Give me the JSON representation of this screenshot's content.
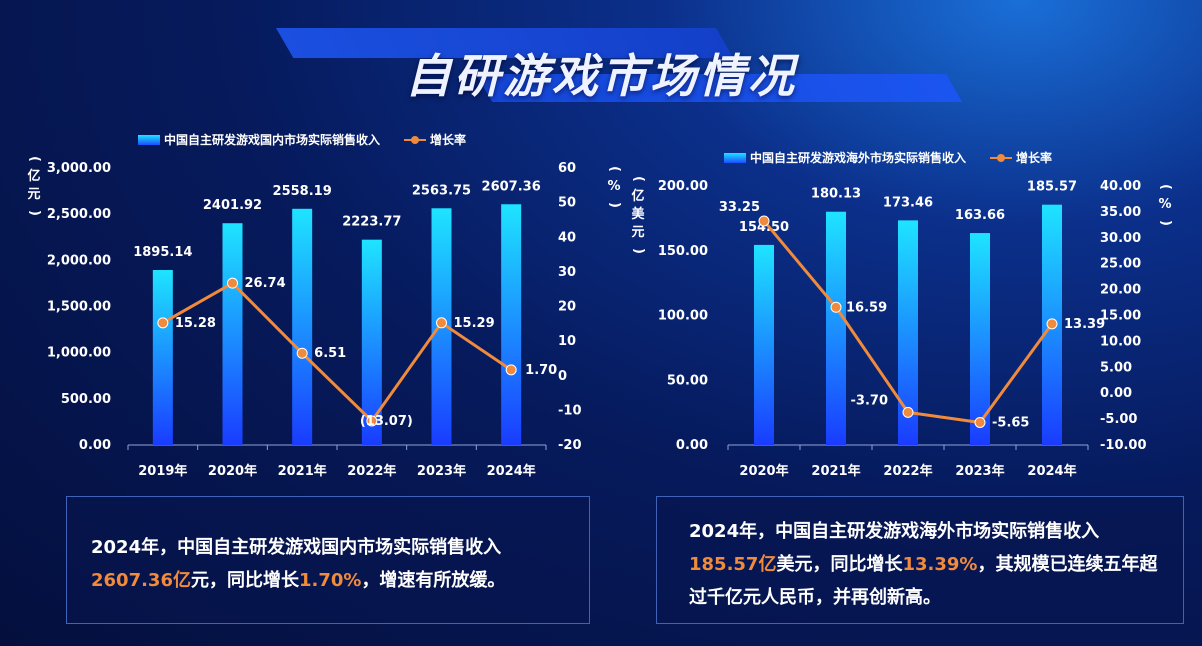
{
  "title": "自研游戏市场情况",
  "colors": {
    "accent": "#f08a3c",
    "bar_top": "#1ee4ff",
    "bar_bottom": "#1a3cff"
  },
  "chart_data": [
    {
      "type": "bar",
      "categories": [
        "2019年",
        "2020年",
        "2021年",
        "2022年",
        "2023年",
        "2024年"
      ],
      "series": [
        {
          "name": "中国自主研发游戏国内市场实际销售收入",
          "type": "bar",
          "axis": "left",
          "values": [
            1895.14,
            2401.92,
            2558.19,
            2223.77,
            2563.75,
            2607.36
          ],
          "labels": [
            "1895.14",
            "2401.92",
            "2558.19",
            "2223.77",
            "2563.75",
            "2607.36"
          ]
        },
        {
          "name": "增长率",
          "type": "line",
          "axis": "right",
          "values": [
            15.28,
            26.74,
            6.51,
            -13.07,
            15.29,
            1.7
          ],
          "labels": [
            "15.28",
            "26.74",
            "6.51",
            "(13.07)",
            "15.29",
            "1.70"
          ]
        }
      ],
      "ylabel_left": "亿元",
      "ylabel_right": "%",
      "ylim_left": [
        0,
        3000
      ],
      "yticks_left": [
        "0.00",
        "500.00",
        "1,000.00",
        "1,500.00",
        "2,000.00",
        "2,500.00",
        "3,000.00"
      ],
      "ylim_right": [
        -20,
        60
      ],
      "yticks_right": [
        "-20",
        "-10",
        "0",
        "10",
        "20",
        "30",
        "40",
        "50",
        "60"
      ],
      "legend": "top",
      "grid": false
    },
    {
      "type": "bar",
      "categories": [
        "2020年",
        "2021年",
        "2022年",
        "2023年",
        "2024年"
      ],
      "series": [
        {
          "name": "中国自主研发游戏海外市场实际销售收入",
          "type": "bar",
          "axis": "left",
          "values": [
            154.5,
            180.13,
            173.46,
            163.66,
            185.57
          ],
          "labels": [
            "154.50",
            "180.13",
            "173.46",
            "163.66",
            "185.57"
          ]
        },
        {
          "name": "增长率",
          "type": "line",
          "axis": "right",
          "values": [
            33.25,
            16.59,
            -3.7,
            -5.65,
            13.39
          ],
          "labels": [
            "33.25",
            "16.59",
            "-3.70",
            "-5.65",
            "13.39"
          ]
        }
      ],
      "ylabel_left": "亿美元",
      "ylabel_right": "%",
      "ylim_left": [
        0,
        200
      ],
      "yticks_left": [
        "0.00",
        "50.00",
        "100.00",
        "150.00",
        "200.00"
      ],
      "ylim_right": [
        -10,
        40
      ],
      "yticks_right": [
        "-10.00",
        "-5.00",
        "0.00",
        "5.00",
        "10.00",
        "15.00",
        "20.00",
        "25.00",
        "30.00",
        "35.00",
        "40.00"
      ],
      "legend": "top",
      "grid": false
    }
  ],
  "captions": [
    {
      "segments": [
        {
          "text": "2024年，中国自主研发游戏国内市场实际销售收入",
          "hl": false
        },
        {
          "text": "2607.36亿",
          "hl": true
        },
        {
          "text": "元，同比增长",
          "hl": false
        },
        {
          "text": "1.70%",
          "hl": true
        },
        {
          "text": "，增速有所放缓。",
          "hl": false
        }
      ]
    },
    {
      "segments": [
        {
          "text": "2024年，中国自主研发游戏海外市场实际销售收入",
          "hl": false
        },
        {
          "text": "185.57亿",
          "hl": true
        },
        {
          "text": "美元，同比增长",
          "hl": false
        },
        {
          "text": "13.39%",
          "hl": true
        },
        {
          "text": "，其规模已连续五年超过千亿元人民币，并再创新高。",
          "hl": false
        }
      ]
    }
  ]
}
